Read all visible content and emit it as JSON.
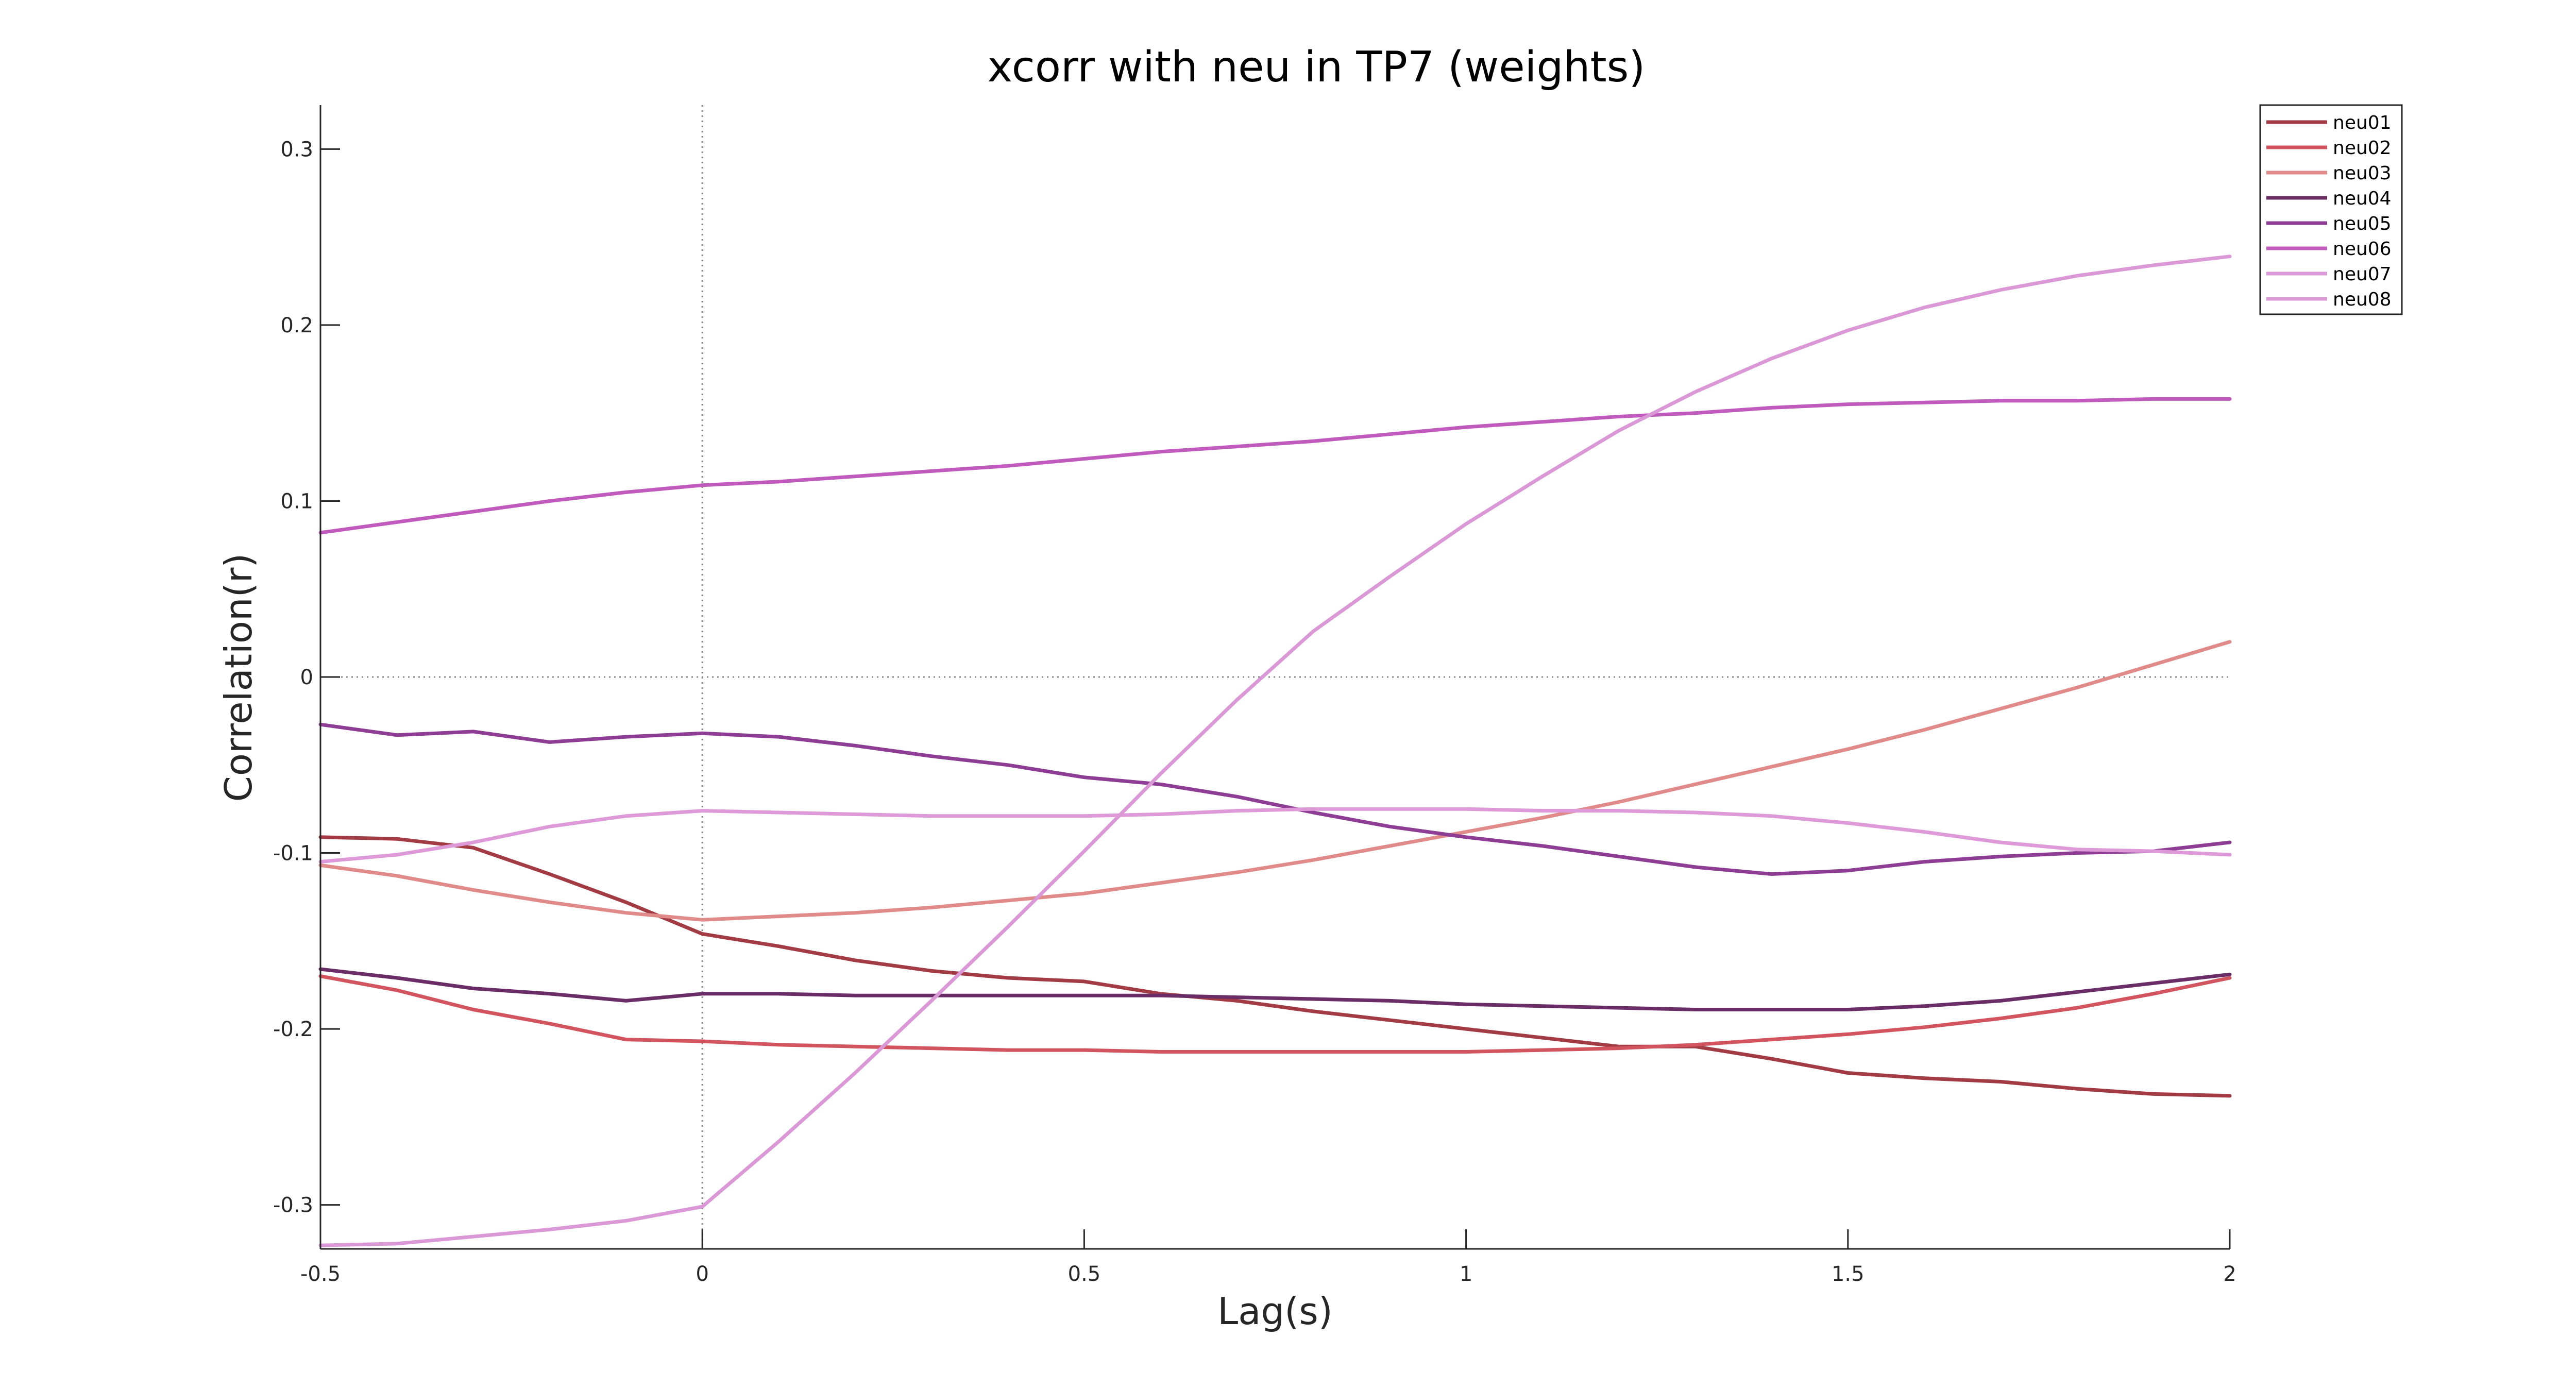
{
  "chart_data": {
    "type": "line",
    "title": "xcorr with neu in TP7 (weights)",
    "xlabel": "Lag(s)",
    "ylabel": "Correlation(r)",
    "xlim": [
      -0.5,
      2
    ],
    "ylim": [
      -0.325,
      0.325
    ],
    "xticks": [
      -0.5,
      0,
      0.5,
      1,
      1.5,
      2
    ],
    "xtick_labels": [
      "-0.5",
      "0",
      "0.5",
      "1",
      "1.5",
      "2"
    ],
    "yticks": [
      0.3,
      0.2,
      0.1,
      0,
      -0.1,
      -0.2,
      -0.3
    ],
    "ytick_labels": [
      "0.3",
      "0.2",
      "0.1",
      "0",
      "-0.1",
      "-0.2",
      "-0.3"
    ],
    "reference_lines": {
      "x": 0,
      "y": 0
    },
    "grid": false,
    "legend_position": "top-right",
    "x": [
      -0.5,
      -0.4,
      -0.3,
      -0.2,
      -0.1,
      0,
      0.1,
      0.2,
      0.3,
      0.4,
      0.5,
      0.6,
      0.7,
      0.8,
      0.9,
      1.0,
      1.1,
      1.2,
      1.3,
      1.4,
      1.5,
      1.6,
      1.7,
      1.8,
      1.9,
      2.0
    ],
    "series": [
      {
        "name": "neu01",
        "color": "#a33b45",
        "values": [
          -0.091,
          -0.092,
          -0.097,
          -0.112,
          -0.128,
          -0.146,
          -0.153,
          -0.161,
          -0.167,
          -0.171,
          -0.173,
          -0.18,
          -0.184,
          -0.19,
          -0.195,
          -0.2,
          -0.205,
          -0.21,
          -0.21,
          -0.217,
          -0.225,
          -0.228,
          -0.23,
          -0.234,
          -0.237,
          -0.238
        ]
      },
      {
        "name": "neu02",
        "color": "#d2545f",
        "values": [
          -0.17,
          -0.178,
          -0.189,
          -0.197,
          -0.206,
          -0.207,
          -0.209,
          -0.21,
          -0.211,
          -0.212,
          -0.212,
          -0.213,
          -0.213,
          -0.213,
          -0.213,
          -0.213,
          -0.212,
          -0.211,
          -0.209,
          -0.206,
          -0.203,
          -0.199,
          -0.194,
          -0.188,
          -0.18,
          -0.171
        ]
      },
      {
        "name": "neu03",
        "color": "#e08a8a",
        "values": [
          -0.107,
          -0.113,
          -0.121,
          -0.128,
          -0.134,
          -0.138,
          -0.136,
          -0.134,
          -0.131,
          -0.127,
          -0.123,
          -0.117,
          -0.111,
          -0.104,
          -0.096,
          -0.088,
          -0.08,
          -0.071,
          -0.061,
          -0.051,
          -0.041,
          -0.03,
          -0.018,
          -0.006,
          0.007,
          0.02
        ]
      },
      {
        "name": "neu04",
        "color": "#6b2d68",
        "values": [
          -0.166,
          -0.171,
          -0.177,
          -0.18,
          -0.184,
          -0.18,
          -0.18,
          -0.181,
          -0.181,
          -0.181,
          -0.181,
          -0.181,
          -0.182,
          -0.183,
          -0.184,
          -0.186,
          -0.187,
          -0.188,
          -0.189,
          -0.189,
          -0.189,
          -0.187,
          -0.184,
          -0.179,
          -0.174,
          -0.169
        ]
      },
      {
        "name": "neu05",
        "color": "#8e3d94",
        "values": [
          -0.027,
          -0.033,
          -0.031,
          -0.037,
          -0.034,
          -0.032,
          -0.034,
          -0.039,
          -0.045,
          -0.05,
          -0.057,
          -0.061,
          -0.068,
          -0.077,
          -0.085,
          -0.091,
          -0.096,
          -0.102,
          -0.108,
          -0.112,
          -0.11,
          -0.105,
          -0.102,
          -0.1,
          -0.099,
          -0.094
        ]
      },
      {
        "name": "neu06",
        "color": "#c05bbd",
        "values": [
          0.082,
          0.088,
          0.094,
          0.1,
          0.105,
          0.109,
          0.111,
          0.114,
          0.117,
          0.12,
          0.124,
          0.128,
          0.131,
          0.134,
          0.138,
          0.142,
          0.145,
          0.148,
          0.15,
          0.153,
          0.155,
          0.156,
          0.157,
          0.157,
          0.158,
          0.158
        ]
      },
      {
        "name": "neu07",
        "color": "#de9ad8",
        "values": [
          -0.105,
          -0.101,
          -0.094,
          -0.085,
          -0.079,
          -0.076,
          -0.077,
          -0.078,
          -0.079,
          -0.079,
          -0.079,
          -0.078,
          -0.076,
          -0.075,
          -0.075,
          -0.075,
          -0.076,
          -0.076,
          -0.077,
          -0.079,
          -0.083,
          -0.088,
          -0.094,
          -0.098,
          -0.099,
          -0.101
        ]
      },
      {
        "name": "neu08",
        "color": "#db98d6",
        "values": [
          -0.323,
          -0.322,
          -0.318,
          -0.314,
          -0.309,
          -0.301,
          -0.264,
          -0.225,
          -0.184,
          -0.142,
          -0.099,
          -0.055,
          -0.013,
          0.026,
          0.057,
          0.087,
          0.114,
          0.14,
          0.162,
          0.181,
          0.197,
          0.21,
          0.22,
          0.228,
          0.234,
          0.239
        ]
      }
    ]
  }
}
